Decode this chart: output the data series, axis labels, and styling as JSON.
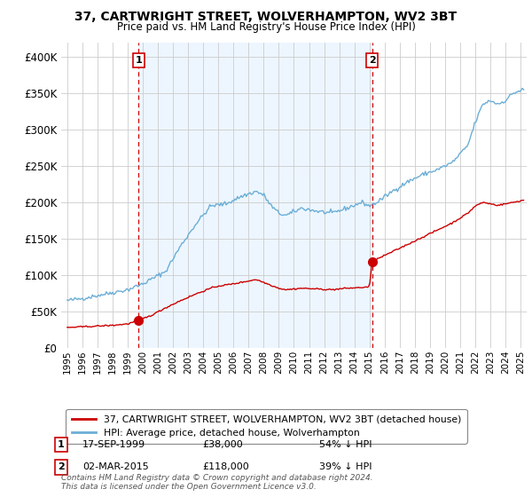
{
  "title": "37, CARTWRIGHT STREET, WOLVERHAMPTON, WV2 3BT",
  "subtitle": "Price paid vs. HM Land Registry's House Price Index (HPI)",
  "legend_line1": "37, CARTWRIGHT STREET, WOLVERHAMPTON, WV2 3BT (detached house)",
  "legend_line2": "HPI: Average price, detached house, Wolverhampton",
  "footnote": "Contains HM Land Registry data © Crown copyright and database right 2024.\nThis data is licensed under the Open Government Licence v3.0.",
  "sale1_date": "17-SEP-1999",
  "sale1_price": "£38,000",
  "sale1_hpi": "54% ↓ HPI",
  "sale1_year": 1999.72,
  "sale1_value": 38000,
  "sale2_date": "02-MAR-2015",
  "sale2_price": "£118,000",
  "sale2_hpi": "39% ↓ HPI",
  "sale2_year": 2015.17,
  "sale2_value": 118000,
  "hpi_color": "#6baed6",
  "price_color": "#cc0000",
  "vline_color": "#cc0000",
  "shade_color": "#ddeeff",
  "background_color": "#ffffff",
  "grid_color": "#cccccc",
  "ylim": [
    0,
    420000
  ],
  "xlim_start": 1994.6,
  "xlim_end": 2025.4
}
